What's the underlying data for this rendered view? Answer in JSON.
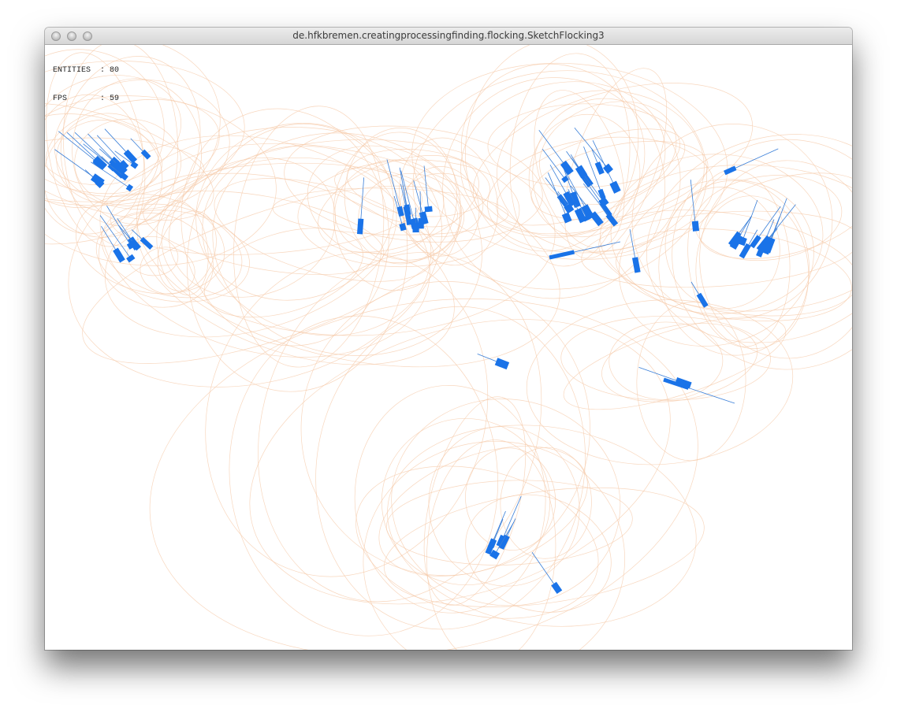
{
  "window": {
    "title": "de.hfkbremen.creatingprocessingfinding.flocking.SketchFlocking3",
    "buttons": [
      "close",
      "minimize",
      "zoom"
    ]
  },
  "hud": {
    "entities_label": "ENTITIES",
    "entities_value": "80",
    "fps_label": "FPS",
    "fps_value": "59"
  },
  "colors": {
    "trail": "#f6c9a8",
    "boid": "#1a73e8",
    "boid_line": "#3a7fd8"
  }
}
